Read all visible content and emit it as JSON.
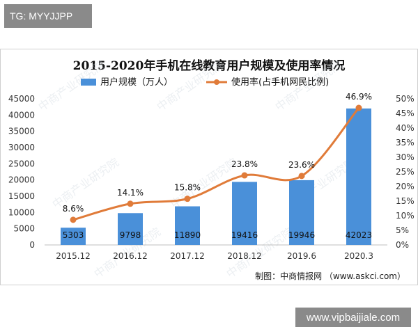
{
  "header_tag": "TG: MYYJJPP",
  "site_badge": "www.vipbaijiale.com",
  "chart_data": {
    "type": "bar",
    "title": "2015-2020年手机在线教育用户规模及使用率情况",
    "categories": [
      "2015.12",
      "2016.12",
      "2017.12",
      "2018.12",
      "2019.6",
      "2020.3"
    ],
    "series": [
      {
        "name": "用户规模（万人）",
        "type": "bar",
        "axis": "left",
        "values": [
          5303,
          9798,
          11890,
          19416,
          19946,
          42023
        ],
        "labels": [
          "5303",
          "9798",
          "11890",
          "19416",
          "19946",
          "42023"
        ],
        "color": "#4a90d9"
      },
      {
        "name": "使用率(占手机网民比例)",
        "type": "line",
        "axis": "right",
        "values": [
          8.6,
          14.1,
          15.8,
          23.8,
          23.6,
          46.9
        ],
        "labels": [
          "8.6%",
          "14.1%",
          "15.8%",
          "23.8%",
          "23.6%",
          "46.9%"
        ],
        "color": "#e07b39"
      }
    ],
    "left_axis": {
      "min": 0,
      "max": 45000,
      "ticks": [
        "0",
        "5000",
        "10000",
        "15000",
        "20000",
        "25000",
        "30000",
        "35000",
        "40000",
        "45000"
      ]
    },
    "right_axis": {
      "min": 0,
      "max": 50,
      "ticks": [
        "0%",
        "5%",
        "10%",
        "15%",
        "20%",
        "25%",
        "30%",
        "35%",
        "40%",
        "45%",
        "50%"
      ]
    },
    "legend_position": "top",
    "grid": false,
    "source": "制图：中商情报网 （www.askci.com）"
  },
  "watermark_text": "中商产业研究院"
}
